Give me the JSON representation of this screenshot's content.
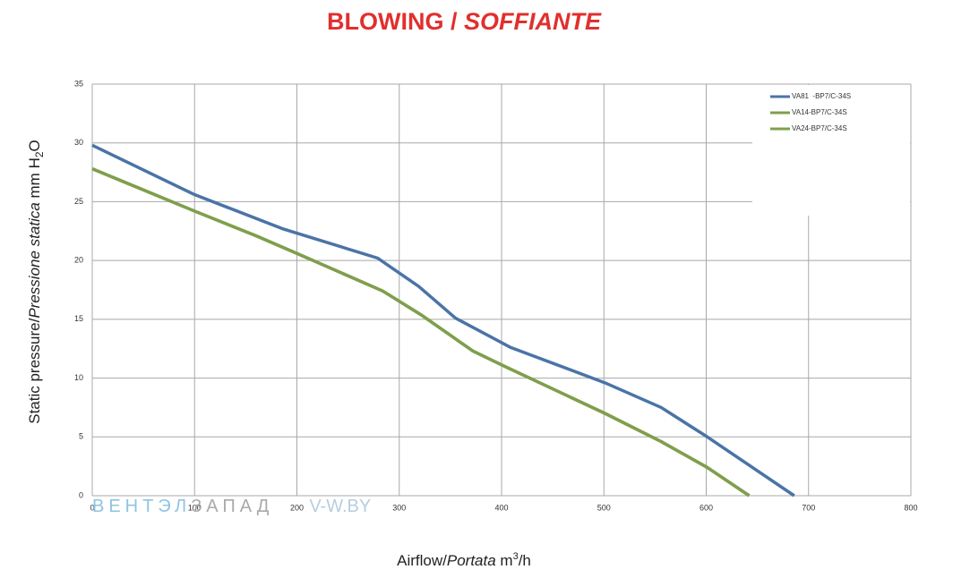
{
  "chart_data": {
    "type": "line",
    "title": {
      "plain": "BLOWING / ",
      "italic": "SOFFIANTE"
    },
    "ylabel": {
      "plain": "Static pressure/",
      "italic": "Pressione statica",
      "unit": " mm  H",
      "sub": "2",
      "end": "O"
    },
    "xlabel": {
      "plain": "Airflow/",
      "italic": "Portata",
      "unit": "  m",
      "sup": "3",
      "end": "/h"
    },
    "watermark": [
      "ВЕНТЭЛ",
      "ЗАПАД",
      "V-W.BY"
    ],
    "xlim": [
      0,
      800
    ],
    "xticks": [
      0,
      100,
      200,
      300,
      400,
      500,
      600,
      700,
      800
    ],
    "ylim": [
      0,
      35
    ],
    "yticks": [
      0,
      5,
      10,
      15,
      20,
      25,
      30,
      35
    ],
    "grid": true,
    "legend": "top-right",
    "series": [
      {
        "name": "VA81  -BP7/C-34S",
        "color": "#4a74a6",
        "x": [
          0,
          100,
          186,
          279,
          319,
          355,
          409,
          501,
          556,
          601,
          686
        ],
        "values": [
          29.8,
          25.6,
          22.7,
          20.2,
          17.8,
          15.1,
          12.6,
          9.6,
          7.5,
          5.0,
          0
        ]
      },
      {
        "name": "VA14-BP7/C-34S",
        "color": "#7f9f4c",
        "x": [
          0,
          100,
          160,
          200,
          284,
          321,
          372,
          403,
          501,
          556,
          601,
          642
        ],
        "values": [
          27.8,
          24.2,
          22.1,
          20.6,
          17.4,
          15.4,
          12.3,
          11.0,
          7.0,
          4.6,
          2.4,
          0
        ]
      },
      {
        "name": "VA24-BP7/C-34S",
        "color": "#7f9f4c",
        "x": [
          0,
          100,
          160,
          200,
          284,
          321,
          372,
          403,
          501,
          556,
          601,
          642
        ],
        "values": [
          27.8,
          24.2,
          22.1,
          20.6,
          17.4,
          15.4,
          12.3,
          11.0,
          7.0,
          4.6,
          2.4,
          0
        ]
      }
    ]
  }
}
